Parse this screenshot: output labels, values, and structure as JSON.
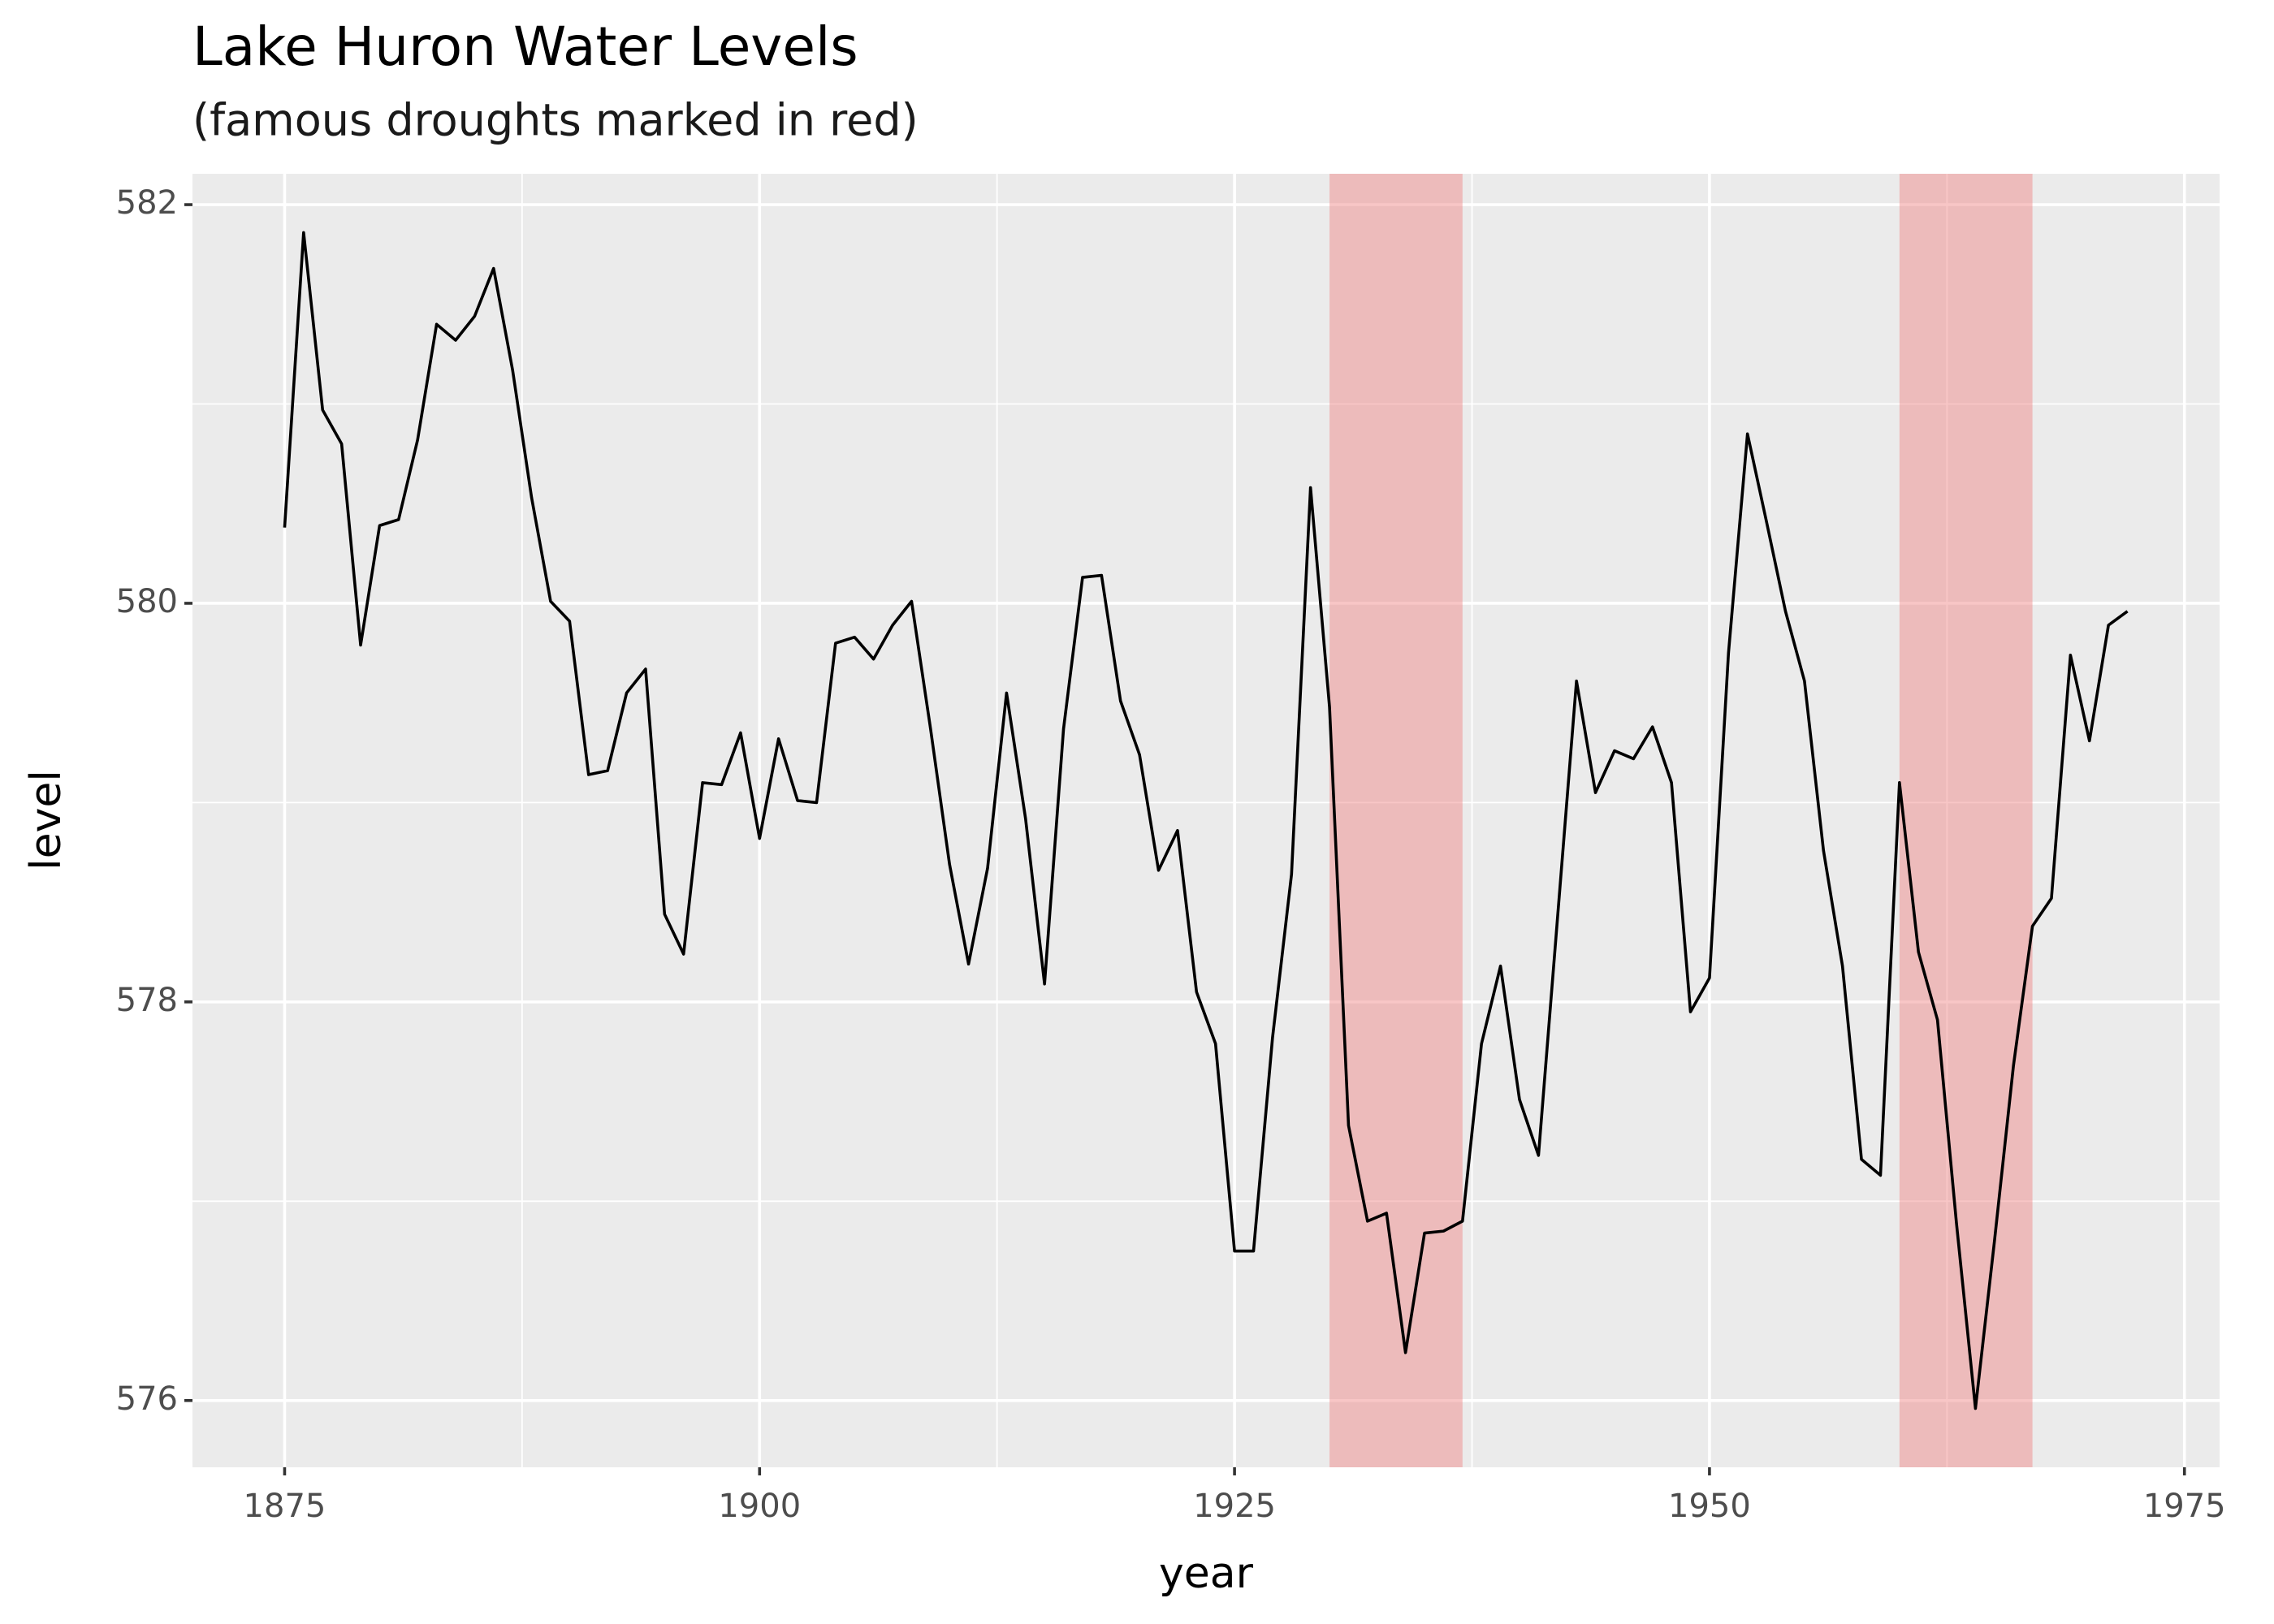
{
  "chart_data": {
    "type": "line",
    "title": "Lake Huron Water Levels",
    "subtitle": "(famous droughts marked in red)",
    "x_label": "year",
    "y_label": "level",
    "x": [
      1875,
      1876,
      1877,
      1878,
      1879,
      1880,
      1881,
      1882,
      1883,
      1884,
      1885,
      1886,
      1887,
      1888,
      1889,
      1890,
      1891,
      1892,
      1893,
      1894,
      1895,
      1896,
      1897,
      1898,
      1899,
      1900,
      1901,
      1902,
      1903,
      1904,
      1905,
      1906,
      1907,
      1908,
      1909,
      1910,
      1911,
      1912,
      1913,
      1914,
      1915,
      1916,
      1917,
      1918,
      1919,
      1920,
      1921,
      1922,
      1923,
      1924,
      1925,
      1926,
      1927,
      1928,
      1929,
      1930,
      1931,
      1932,
      1933,
      1934,
      1935,
      1936,
      1937,
      1938,
      1939,
      1940,
      1941,
      1942,
      1943,
      1944,
      1945,
      1946,
      1947,
      1948,
      1949,
      1950,
      1951,
      1952,
      1953,
      1954,
      1955,
      1956,
      1957,
      1958,
      1959,
      1960,
      1961,
      1962,
      1963,
      1964,
      1965,
      1966,
      1967,
      1968,
      1969,
      1970,
      1971,
      1972
    ],
    "values": [
      580.38,
      581.86,
      580.97,
      580.8,
      579.79,
      580.39,
      580.42,
      580.82,
      581.4,
      581.32,
      581.44,
      581.68,
      581.17,
      580.53,
      580.01,
      579.91,
      579.14,
      579.16,
      579.55,
      579.67,
      578.44,
      578.24,
      579.1,
      579.09,
      579.35,
      578.82,
      579.32,
      579.01,
      579.0,
      579.8,
      579.83,
      579.72,
      579.89,
      580.01,
      579.37,
      578.69,
      578.19,
      578.67,
      579.55,
      578.92,
      578.09,
      579.37,
      580.13,
      580.14,
      579.51,
      579.24,
      578.66,
      578.86,
      578.05,
      577.79,
      576.75,
      576.75,
      577.82,
      578.64,
      580.58,
      579.48,
      577.38,
      576.9,
      576.94,
      576.24,
      576.84,
      576.85,
      576.9,
      577.79,
      578.18,
      577.51,
      577.23,
      578.42,
      579.61,
      579.05,
      579.26,
      579.22,
      579.38,
      579.1,
      577.95,
      578.12,
      579.75,
      580.85,
      580.41,
      579.96,
      579.61,
      578.76,
      578.18,
      577.21,
      577.13,
      579.1,
      578.25,
      577.91,
      576.89,
      575.96,
      576.8,
      577.68,
      578.38,
      578.52,
      579.74,
      579.31,
      579.89,
      579.96
    ],
    "color": "#000000",
    "highlights": [
      {
        "start": 1930,
        "end": 1937
      },
      {
        "start": 1960,
        "end": 1967
      }
    ],
    "highlight_color": "#f08080",
    "xlim": [
      1870.15,
      1976.85
    ],
    "ylim": [
      575.665,
      582.155
    ],
    "xticks": [
      1875,
      1900,
      1925,
      1950,
      1975
    ],
    "yticks": [
      576,
      578,
      580,
      582
    ],
    "x_minor_grid": [
      1887.5,
      1912.5,
      1937.5,
      1962.5
    ],
    "y_minor_grid": [
      577,
      579,
      581
    ],
    "grid": true
  }
}
